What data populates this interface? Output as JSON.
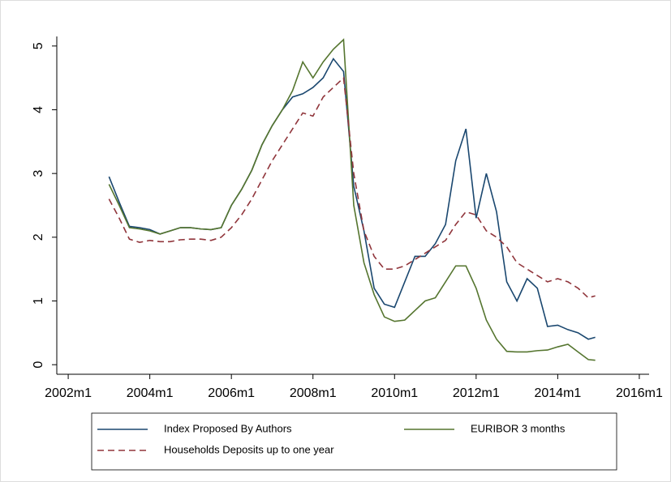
{
  "chart_data": {
    "type": "line",
    "x": [
      2003.0,
      2003.25,
      2003.5,
      2003.75,
      2004.0,
      2004.25,
      2004.5,
      2004.75,
      2005.0,
      2005.25,
      2005.5,
      2005.75,
      2006.0,
      2006.25,
      2006.5,
      2006.75,
      2007.0,
      2007.25,
      2007.5,
      2007.75,
      2008.0,
      2008.25,
      2008.5,
      2008.75,
      2009.0,
      2009.25,
      2009.5,
      2009.75,
      2010.0,
      2010.25,
      2010.5,
      2010.75,
      2011.0,
      2011.25,
      2011.5,
      2011.75,
      2012.0,
      2012.25,
      2012.5,
      2012.75,
      2013.0,
      2013.25,
      2013.5,
      2013.75,
      2014.0,
      2014.25,
      2014.5,
      2014.75,
      2014.92
    ],
    "series": [
      {
        "name": "Index Proposed By Authors",
        "color": "#1a476f",
        "dash": false,
        "values": [
          2.95,
          2.55,
          2.17,
          2.15,
          2.12,
          2.05,
          2.1,
          2.15,
          2.15,
          2.13,
          2.12,
          2.15,
          2.5,
          2.75,
          3.05,
          3.45,
          3.75,
          4.0,
          4.2,
          4.25,
          4.35,
          4.5,
          4.8,
          4.6,
          2.8,
          2.1,
          1.2,
          0.95,
          0.9,
          1.3,
          1.7,
          1.7,
          1.9,
          2.2,
          3.2,
          3.7,
          2.3,
          3.0,
          2.4,
          1.3,
          1.0,
          1.35,
          1.2,
          0.6,
          0.62,
          0.55,
          0.5,
          0.4,
          0.43
        ]
      },
      {
        "name": "EURIBOR 3 months",
        "color": "#55752f",
        "dash": false,
        "values": [
          2.83,
          2.5,
          2.15,
          2.13,
          2.1,
          2.05,
          2.1,
          2.15,
          2.15,
          2.13,
          2.12,
          2.15,
          2.5,
          2.75,
          3.05,
          3.45,
          3.75,
          4.0,
          4.3,
          4.75,
          4.5,
          4.75,
          4.95,
          5.1,
          2.5,
          1.6,
          1.1,
          0.75,
          0.68,
          0.7,
          0.85,
          1.0,
          1.05,
          1.3,
          1.55,
          1.55,
          1.2,
          0.7,
          0.4,
          0.21,
          0.2,
          0.2,
          0.22,
          0.23,
          0.28,
          0.32,
          0.2,
          0.08,
          0.07
        ]
      },
      {
        "name": "Households Deposits up to one year",
        "color": "#90353b",
        "dash": true,
        "values": [
          2.6,
          2.3,
          1.97,
          1.92,
          1.95,
          1.93,
          1.93,
          1.96,
          1.97,
          1.97,
          1.95,
          2.0,
          2.15,
          2.35,
          2.6,
          2.9,
          3.2,
          3.45,
          3.7,
          3.95,
          3.9,
          4.2,
          4.35,
          4.5,
          3.0,
          2.1,
          1.7,
          1.5,
          1.5,
          1.55,
          1.65,
          1.75,
          1.85,
          1.95,
          2.2,
          2.4,
          2.35,
          2.1,
          2.0,
          1.85,
          1.6,
          1.5,
          1.4,
          1.3,
          1.35,
          1.3,
          1.2,
          1.05,
          1.08
        ]
      }
    ],
    "xlim": [
      2001.72,
      2016.24
    ],
    "xticks": [
      {
        "value": 2002,
        "label": "2002m1"
      },
      {
        "value": 2004,
        "label": "2004m1"
      },
      {
        "value": 2006,
        "label": "2006m1"
      },
      {
        "value": 2008,
        "label": "2008m1"
      },
      {
        "value": 2010,
        "label": "2010m1"
      },
      {
        "value": 2012,
        "label": "2012m1"
      },
      {
        "value": 2014,
        "label": "2014m1"
      },
      {
        "value": 2016,
        "label": "2016m1"
      }
    ],
    "ylim": [
      -0.15,
      5.15
    ],
    "yticks": [
      0,
      1,
      2,
      3,
      4,
      5
    ],
    "grid": false
  }
}
